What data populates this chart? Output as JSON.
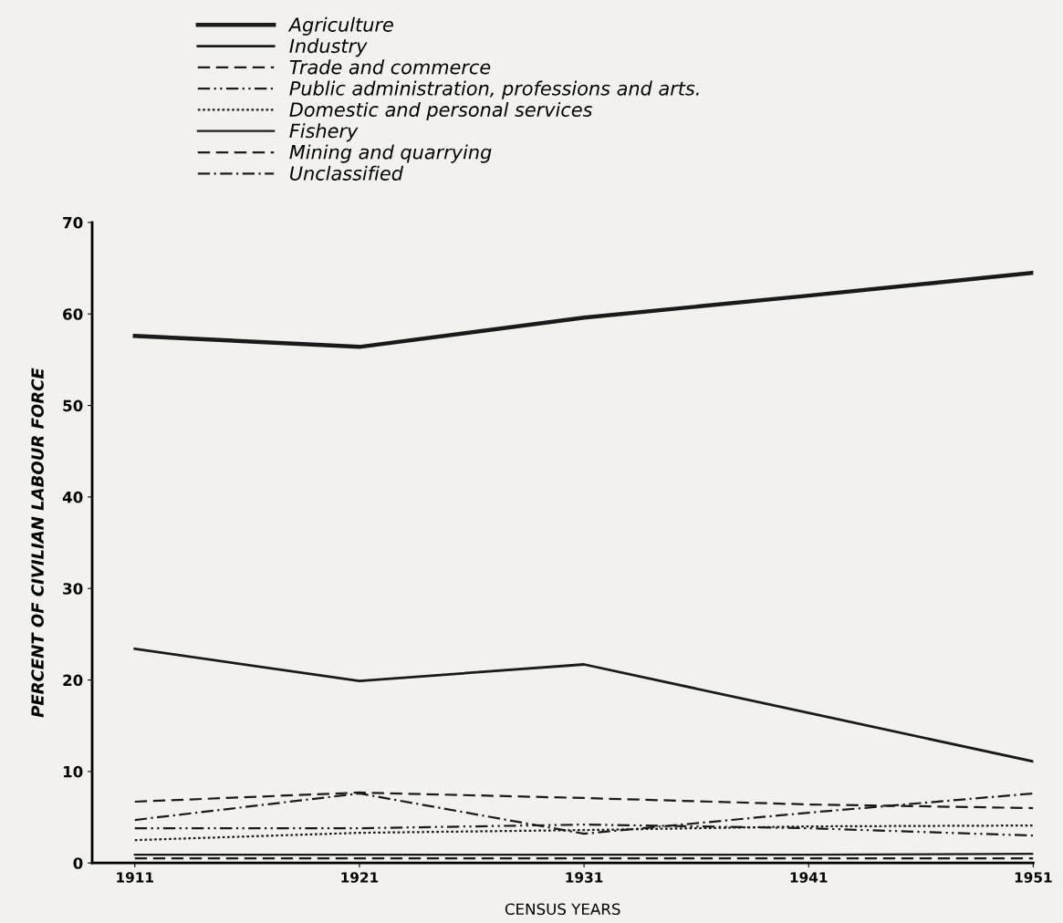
{
  "chart_data": {
    "type": "line",
    "xlabel": "CENSUS YEARS",
    "ylabel": "PERCENT OF CIVILIAN LABOUR FORCE",
    "x": [
      1911,
      1921,
      1931,
      1941,
      1951
    ],
    "xlim": [
      1909.1,
      1951
    ],
    "xticks": [
      1911,
      1921,
      1931,
      1941,
      1951
    ],
    "ylim": [
      0,
      70
    ],
    "yticks": [
      0,
      10,
      20,
      30,
      40,
      50,
      60,
      70
    ],
    "grid": false,
    "legend": "top",
    "marker": "none",
    "series": [
      {
        "name": "Agriculture",
        "color": "#1a1a1a",
        "line_style": "solid",
        "values": [
          57.6,
          56.4,
          59.6,
          62.0,
          64.5
        ]
      },
      {
        "name": "Industry",
        "color": "#1a1a1a",
        "line_style": "solid",
        "values": [
          23.4,
          19.9,
          21.7,
          16.4,
          11.1
        ]
      },
      {
        "name": "Trade and commerce",
        "color": "#1a1a1a",
        "line_style": "dashed",
        "values": [
          6.7,
          7.7,
          7.1,
          6.4,
          6.0
        ]
      },
      {
        "name": "Public administration, professions and arts.",
        "color": "#1a1a1a",
        "line_style": "dashdotdot",
        "values": [
          3.8,
          3.8,
          4.2,
          3.8,
          3.0
        ]
      },
      {
        "name": "Domestic and personal services",
        "color": "#1a1a1a",
        "line_style": "dotted",
        "values": [
          2.5,
          3.3,
          3.6,
          4.0,
          4.1
        ]
      },
      {
        "name": "Fishery",
        "color": "#1a1a1a",
        "line_style": "solid",
        "values": [
          0.9,
          0.9,
          0.9,
          0.9,
          1.0
        ]
      },
      {
        "name": "Mining and quarrying",
        "color": "#1a1a1a",
        "line_style": "dashed",
        "values": [
          0.5,
          0.5,
          0.5,
          0.5,
          0.5
        ]
      },
      {
        "name": "Unclassified",
        "color": "#1a1a1a",
        "line_style": "dashdot",
        "values": [
          4.7,
          7.6,
          3.2,
          5.5,
          7.6
        ]
      }
    ]
  }
}
